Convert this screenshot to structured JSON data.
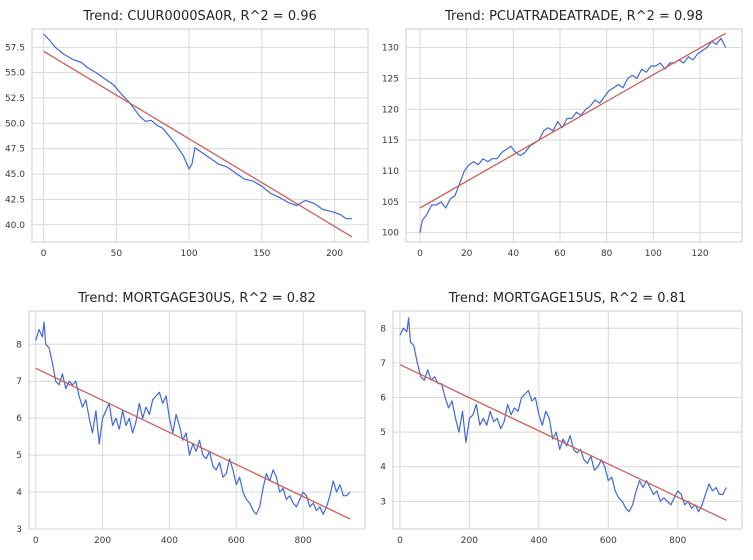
{
  "figure": {
    "colors": {
      "series": "#4169d6",
      "trend": "#c9605a",
      "grid": "#d9d9d9"
    }
  },
  "chart_data": [
    {
      "type": "line",
      "title": "Trend: CUUR0000SA0R, R^2 = 0.96",
      "xlabel": "",
      "ylabel": "",
      "xlim": [
        -8,
        223
      ],
      "ylim": [
        38.3,
        59.3
      ],
      "xticks": [
        0,
        50,
        100,
        150,
        200
      ],
      "yticks": [
        40.0,
        42.5,
        45.0,
        47.5,
        50.0,
        52.5,
        55.0,
        57.5
      ],
      "ytick_decimals": 1,
      "grid": true,
      "series": [
        {
          "role": "data",
          "x": [
            0,
            4,
            8,
            14,
            20,
            26,
            30,
            36,
            42,
            48,
            54,
            58,
            62,
            66,
            70,
            74,
            78,
            82,
            86,
            90,
            96,
            100,
            102,
            104,
            108,
            114,
            120,
            126,
            132,
            138,
            144,
            150,
            156,
            162,
            168,
            174,
            180,
            186,
            192,
            198,
            204,
            208,
            212
          ],
          "y": [
            58.8,
            58.2,
            57.5,
            56.8,
            56.3,
            56.0,
            55.5,
            55.0,
            54.4,
            53.8,
            52.8,
            52.2,
            51.5,
            50.7,
            50.2,
            50.3,
            49.8,
            49.5,
            48.8,
            48.1,
            46.8,
            45.5,
            46.0,
            47.6,
            47.2,
            46.6,
            46.0,
            45.7,
            45.1,
            44.5,
            44.3,
            43.8,
            43.1,
            42.7,
            42.2,
            41.9,
            42.4,
            42.1,
            41.5,
            41.3,
            41.0,
            40.6,
            40.6
          ]
        },
        {
          "role": "trend",
          "x": [
            0,
            212
          ],
          "y": [
            57.1,
            38.8
          ]
        }
      ]
    },
    {
      "type": "line",
      "title": "Trend: PCUATRADEATRADE, R^2 = 0.98",
      "xlabel": "",
      "ylabel": "",
      "xlim": [
        -6,
        138
      ],
      "ylim": [
        98.5,
        133
      ],
      "xticks": [
        0,
        20,
        40,
        60,
        80,
        100,
        120
      ],
      "yticks": [
        100,
        105,
        110,
        115,
        120,
        125,
        130
      ],
      "ytick_decimals": 0,
      "grid": true,
      "series": [
        {
          "role": "data",
          "x": [
            0,
            1,
            3,
            5,
            7,
            9,
            11,
            13,
            15,
            17,
            19,
            21,
            23,
            25,
            27,
            29,
            31,
            33,
            35,
            37,
            39,
            41,
            43,
            45,
            47,
            49,
            51,
            53,
            55,
            57,
            59,
            61,
            63,
            65,
            67,
            69,
            71,
            73,
            75,
            77,
            79,
            81,
            83,
            85,
            87,
            89,
            91,
            93,
            95,
            97,
            99,
            101,
            103,
            105,
            107,
            109,
            111,
            113,
            115,
            117,
            119,
            121,
            123,
            125,
            127,
            129,
            131
          ],
          "y": [
            100,
            102,
            103,
            104.5,
            104.5,
            105,
            104,
            105.5,
            106,
            108,
            110,
            111,
            111.5,
            111,
            112,
            111.5,
            112,
            112,
            113,
            113.5,
            114,
            113,
            112.5,
            113,
            114,
            114.5,
            115,
            116.5,
            117,
            116.5,
            118,
            117,
            118.5,
            118.5,
            119.5,
            119,
            120,
            120.5,
            121.5,
            121,
            122,
            123,
            123.5,
            124,
            123.5,
            125,
            125.5,
            125,
            126.5,
            126,
            127,
            127,
            127.5,
            126.5,
            127.5,
            127.5,
            128,
            127.5,
            128.5,
            128,
            129,
            129.5,
            130,
            131,
            130.5,
            131.5,
            130
          ]
        },
        {
          "role": "trend",
          "x": [
            0,
            131
          ],
          "y": [
            104.0,
            132.3
          ]
        }
      ]
    },
    {
      "type": "line",
      "title": "Trend: MORTGAGE30US, R^2 = 0.82",
      "xlabel": "",
      "ylabel": "",
      "xlim": [
        -20,
        985
      ],
      "ylim": [
        3,
        8.9
      ],
      "xticks": [
        0,
        200,
        400,
        600,
        800
      ],
      "yticks": [
        3,
        4,
        5,
        6,
        7,
        8
      ],
      "ytick_decimals": 0,
      "grid": true,
      "series": [
        {
          "role": "data",
          "x": [
            0,
            10,
            20,
            25,
            30,
            40,
            50,
            60,
            70,
            80,
            90,
            100,
            110,
            120,
            130,
            140,
            150,
            160,
            170,
            180,
            190,
            200,
            210,
            220,
            230,
            240,
            250,
            260,
            270,
            280,
            290,
            300,
            310,
            320,
            330,
            340,
            350,
            360,
            370,
            380,
            390,
            400,
            410,
            420,
            430,
            440,
            450,
            460,
            470,
            480,
            490,
            500,
            510,
            520,
            530,
            540,
            550,
            560,
            570,
            580,
            590,
            600,
            610,
            620,
            630,
            640,
            650,
            660,
            670,
            680,
            690,
            700,
            710,
            720,
            730,
            740,
            750,
            760,
            770,
            780,
            790,
            800,
            810,
            820,
            830,
            840,
            850,
            860,
            870,
            880,
            890,
            900,
            910,
            920,
            930,
            940
          ],
          "y": [
            8.1,
            8.4,
            8.2,
            8.6,
            8.0,
            7.9,
            7.5,
            7.0,
            6.9,
            7.2,
            6.8,
            7.0,
            6.9,
            7.0,
            6.6,
            6.3,
            6.5,
            6.0,
            5.6,
            6.2,
            5.3,
            6.0,
            6.2,
            6.4,
            5.8,
            6.0,
            5.7,
            6.2,
            5.8,
            6.0,
            5.6,
            5.9,
            6.4,
            6.0,
            6.3,
            6.1,
            6.5,
            6.6,
            6.7,
            6.4,
            6.6,
            6.0,
            5.6,
            6.1,
            5.8,
            5.4,
            5.6,
            5.0,
            5.3,
            5.1,
            5.4,
            5.0,
            4.9,
            5.1,
            4.7,
            4.6,
            4.8,
            4.4,
            4.5,
            4.9,
            4.6,
            4.2,
            4.4,
            4.0,
            3.8,
            3.7,
            3.5,
            3.4,
            3.6,
            4.1,
            4.5,
            4.3,
            4.6,
            4.4,
            4.0,
            4.1,
            3.8,
            3.9,
            3.7,
            3.6,
            3.8,
            4.0,
            3.9,
            3.6,
            3.7,
            3.5,
            3.6,
            3.4,
            3.6,
            3.9,
            4.3,
            4.0,
            4.2,
            3.9,
            3.9,
            4.0
          ]
        },
        {
          "role": "trend",
          "x": [
            0,
            940
          ],
          "y": [
            7.35,
            3.27
          ]
        }
      ]
    },
    {
      "type": "line",
      "title": "Trend: MORTGAGE15US, R^2 = 0.81",
      "xlabel": "",
      "ylabel": "",
      "xlim": [
        -20,
        985
      ],
      "ylim": [
        2.2,
        8.5
      ],
      "xticks": [
        0,
        200,
        400,
        600,
        800
      ],
      "yticks": [
        3,
        4,
        5,
        6,
        7,
        8
      ],
      "ytick_decimals": 0,
      "grid": true,
      "series": [
        {
          "role": "data",
          "x": [
            0,
            10,
            20,
            25,
            30,
            40,
            50,
            60,
            70,
            80,
            90,
            100,
            110,
            120,
            130,
            140,
            150,
            160,
            170,
            180,
            190,
            200,
            210,
            220,
            230,
            240,
            250,
            260,
            270,
            280,
            290,
            300,
            310,
            320,
            330,
            340,
            350,
            360,
            370,
            380,
            390,
            400,
            410,
            420,
            430,
            440,
            450,
            460,
            470,
            480,
            490,
            500,
            510,
            520,
            530,
            540,
            550,
            560,
            570,
            580,
            590,
            600,
            610,
            620,
            630,
            640,
            650,
            660,
            670,
            680,
            690,
            700,
            710,
            720,
            730,
            740,
            750,
            760,
            770,
            780,
            790,
            800,
            810,
            820,
            830,
            840,
            850,
            860,
            870,
            880,
            890,
            900,
            910,
            920,
            930,
            940
          ],
          "y": [
            7.8,
            8.0,
            7.9,
            8.3,
            7.6,
            7.5,
            7.0,
            6.6,
            6.5,
            6.8,
            6.5,
            6.6,
            6.4,
            6.4,
            6.0,
            5.7,
            5.9,
            5.4,
            5.0,
            5.6,
            4.7,
            5.4,
            5.5,
            5.8,
            5.2,
            5.4,
            5.2,
            5.6,
            5.3,
            5.4,
            5.1,
            5.3,
            5.8,
            5.5,
            5.7,
            5.6,
            6.0,
            6.1,
            6.2,
            5.9,
            6.0,
            5.5,
            5.2,
            5.6,
            5.4,
            4.8,
            5.0,
            4.5,
            4.8,
            4.6,
            4.9,
            4.5,
            4.4,
            4.5,
            4.2,
            4.1,
            4.3,
            3.9,
            4.0,
            4.2,
            4.0,
            3.6,
            3.7,
            3.3,
            3.1,
            3.0,
            2.8,
            2.7,
            2.9,
            3.3,
            3.6,
            3.4,
            3.6,
            3.4,
            3.2,
            3.3,
            3.0,
            3.1,
            3.0,
            2.9,
            3.1,
            3.3,
            3.2,
            2.9,
            3.0,
            2.8,
            2.9,
            2.7,
            2.9,
            3.2,
            3.5,
            3.3,
            3.4,
            3.2,
            3.2,
            3.4
          ]
        },
        {
          "role": "trend",
          "x": [
            0,
            940
          ],
          "y": [
            6.95,
            2.45
          ]
        }
      ]
    }
  ]
}
